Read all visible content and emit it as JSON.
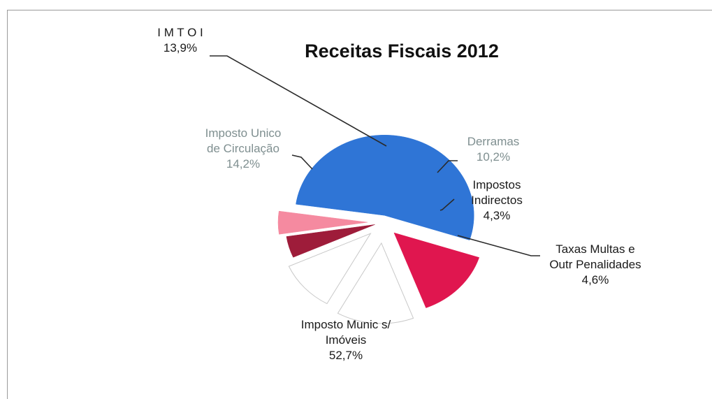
{
  "chart_data": {
    "type": "pie",
    "title": "Receitas Fiscais 2012",
    "slices": [
      {
        "lines": [
          "Imposto Munic  s/",
          "Imóveis",
          "52,7%"
        ],
        "value": 52.7,
        "color": "#2f75d6"
      },
      {
        "lines": [
          "Imposto Unico",
          "de Circulação",
          "14,2%"
        ],
        "value": 14.2,
        "color": "#e0164f"
      },
      {
        "lines": [
          "I M T O I",
          "13,9%"
        ],
        "value": 13.9,
        "color": "#ffffff"
      },
      {
        "lines": [
          "Derramas",
          "10,2%"
        ],
        "value": 10.2,
        "color": "#ffffff"
      },
      {
        "lines": [
          "Impostos",
          "Indirectos",
          "4,3%"
        ],
        "value": 4.3,
        "color": "#9e1c3a"
      },
      {
        "lines": [
          "Taxas Multas e",
          "Outr  Penalidades",
          "4,6%"
        ],
        "value": 4.6,
        "color": "#f58aa0"
      }
    ],
    "legend": "none"
  }
}
